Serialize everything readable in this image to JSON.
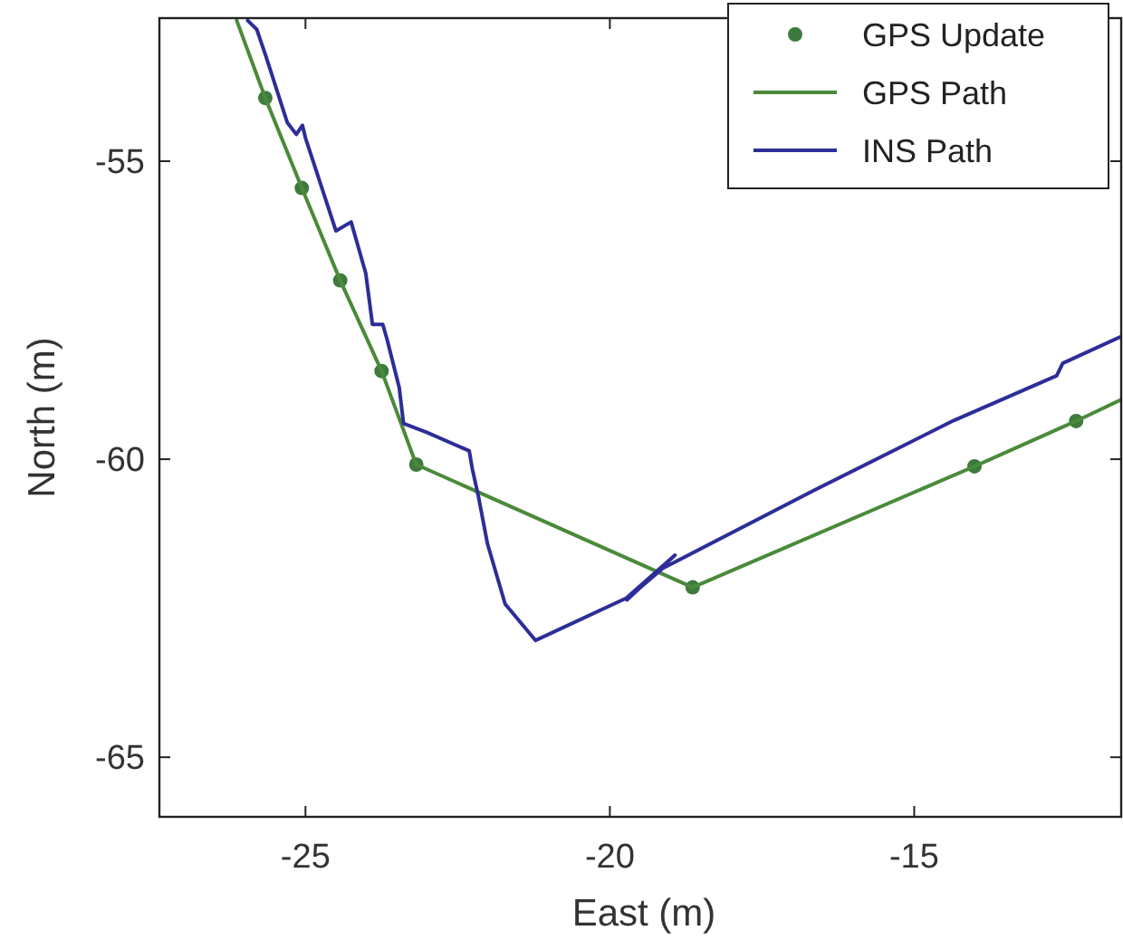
{
  "chart_data": {
    "type": "line",
    "xlabel": "East (m)",
    "ylabel": "North (m)",
    "xlim": [
      -27.4,
      -11.6
    ],
    "ylim": [
      -66,
      -52.6
    ],
    "xticks": [
      -25,
      -20,
      -15
    ],
    "yticks": [
      -65,
      -60,
      -55
    ],
    "grid": false,
    "legend": "top right",
    "series": [
      {
        "name": "GPS Update",
        "type": "scatter",
        "marker": "circle",
        "color": "#3d7a3d",
        "x": [
          -25.66,
          -25.06,
          -24.43,
          -23.75,
          -23.18,
          -18.64,
          -14.01,
          -12.34
        ],
        "values": [
          -53.94,
          -55.45,
          -57.0,
          -58.52,
          -60.09,
          -62.15,
          -60.12,
          -59.36
        ]
      },
      {
        "name": "GPS Path",
        "color": "#4a8a3a",
        "x": [
          -26.13,
          -25.66,
          -25.06,
          -24.43,
          -23.75,
          -23.18,
          -18.64,
          -14.01,
          -12.34,
          -11.6
        ],
        "values": [
          -52.64,
          -53.94,
          -55.45,
          -57.0,
          -58.52,
          -60.09,
          -62.15,
          -60.12,
          -59.36,
          -59.0
        ]
      },
      {
        "name": "INS Path",
        "color": "#2d2d99",
        "x": [
          -25.95,
          -25.8,
          -25.75,
          -25.65,
          -25.3,
          -25.15,
          -25.05,
          -25.0,
          -24.5,
          -24.25,
          -24.01,
          -23.9,
          -23.73,
          -23.66,
          -23.46,
          -23.39,
          -23.01,
          -22.31,
          -22.26,
          -22.16,
          -22.01,
          -21.72,
          -21.22,
          -19.73,
          -18.93,
          -19.72,
          -19.53,
          -19.13,
          -16.64,
          -14.35,
          -12.66,
          -12.56,
          -11.6
        ],
        "values": [
          -52.64,
          -52.79,
          -52.94,
          -53.24,
          -54.35,
          -54.55,
          -54.4,
          -54.61,
          -56.17,
          -56.02,
          -56.88,
          -57.74,
          -57.74,
          -57.99,
          -58.8,
          -59.4,
          -59.55,
          -59.86,
          -60.16,
          -60.62,
          -61.42,
          -62.43,
          -63.04,
          -62.33,
          -61.61,
          -62.36,
          -62.18,
          -61.83,
          -60.52,
          -59.35,
          -58.6,
          -58.39,
          -57.94
        ]
      }
    ]
  }
}
